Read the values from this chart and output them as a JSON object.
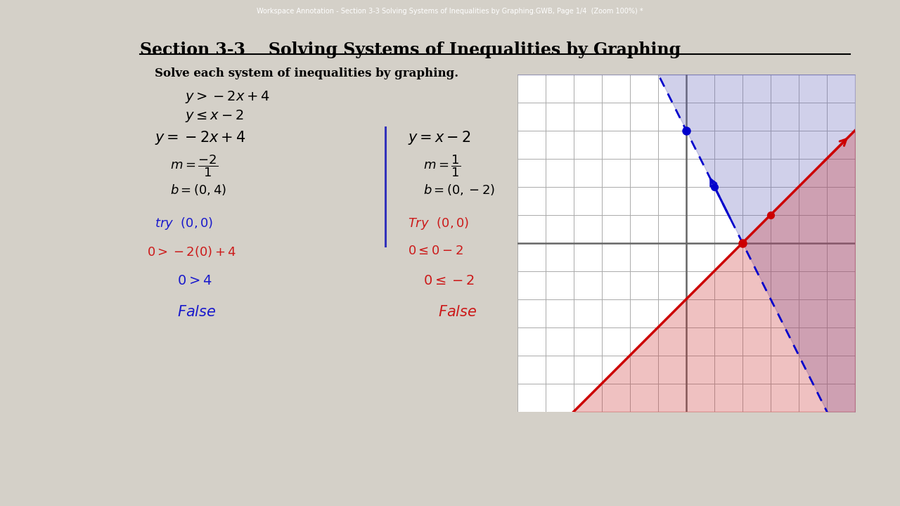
{
  "title": "Section 3-3    Solving Systems of Inequalities by Graphing",
  "subtitle": "Solve each system of inequalities by graphing.",
  "bg_color": "#d4d0c8",
  "page_bg": "#ffffff",
  "grid_color": "#aaaaaa",
  "blue_shade": "#aaaadd",
  "red_shade": "#dd8888",
  "dashed_line_color": "#0000cc",
  "red_line_color": "#cc0000",
  "axis_color": "#666666"
}
